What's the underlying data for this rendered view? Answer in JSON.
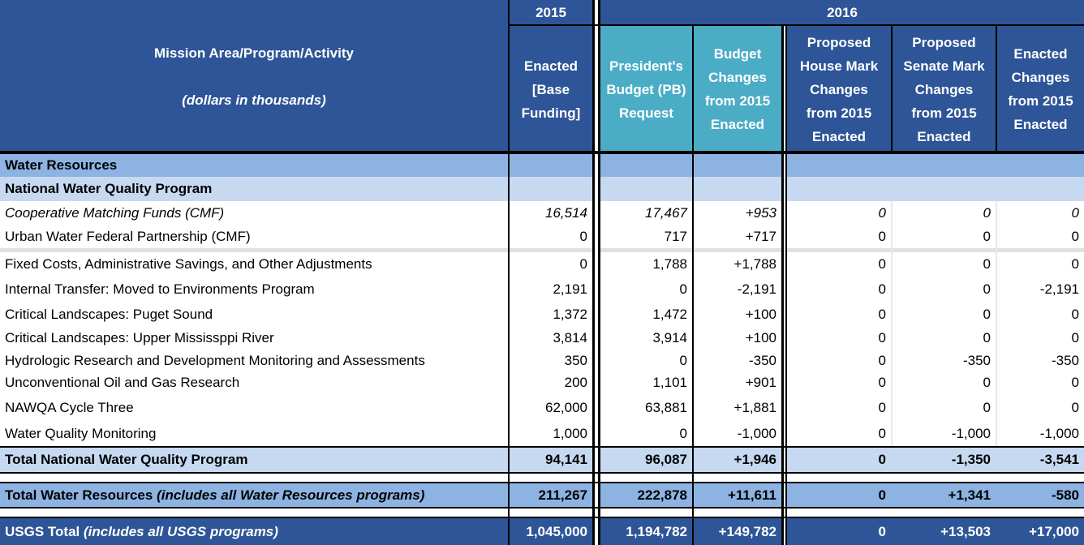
{
  "header": {
    "year_2015": "2015",
    "year_2016": "2016",
    "mission_title": "Mission Area/Program/Activity",
    "mission_subtitle": "(dollars in thousands)",
    "col_enacted_2015": [
      "Enacted",
      "[Base",
      "Funding]"
    ],
    "col_pb_request": [
      "President's",
      "Budget (PB)",
      "Request"
    ],
    "col_budget_changes": [
      "Budget",
      "Changes",
      "from 2015",
      "Enacted"
    ],
    "col_house_mark": [
      "Proposed",
      "House Mark",
      "Changes",
      "from 2015",
      "Enacted"
    ],
    "col_senate_mark": [
      "Proposed",
      "Senate Mark",
      "Changes",
      "from 2015",
      "Enacted"
    ],
    "col_enacted_changes": [
      "Enacted",
      "Changes",
      "from 2015",
      "Enacted"
    ]
  },
  "sections": {
    "water_resources": "Water Resources",
    "nwqp": "National Water Quality Program"
  },
  "rows": [
    {
      "label": "Cooperative Matching Funds (CMF)",
      "v": [
        "16,514",
        "17,467",
        "+953",
        "0",
        "0",
        "0"
      ]
    },
    {
      "label": "Urban Water Federal Partnership (CMF)",
      "v": [
        "0",
        "717",
        "+717",
        "0",
        "0",
        "0"
      ]
    },
    {
      "label": "Fixed Costs, Administrative Savings, and Other Adjustments",
      "v": [
        "0",
        "1,788",
        "+1,788",
        "0",
        "0",
        "0"
      ]
    },
    {
      "label": "Internal Transfer: Moved to Environments Program",
      "v": [
        "2,191",
        "0",
        "-2,191",
        "0",
        "0",
        "-2,191"
      ]
    },
    {
      "label": "Critical Landscapes: Puget Sound",
      "v": [
        "1,372",
        "1,472",
        "+100",
        "0",
        "0",
        "0"
      ]
    },
    {
      "label": "Critical Landscapes: Upper Mississppi River",
      "v": [
        "3,814",
        "3,914",
        "+100",
        "0",
        "0",
        "0"
      ]
    },
    {
      "label": "Hydrologic Research and Development Monitoring and Assessments",
      "v": [
        "350",
        "0",
        "-350",
        "0",
        "-350",
        "-350"
      ]
    },
    {
      "label": "Unconventional Oil and Gas Research",
      "v": [
        "200",
        "1,101",
        "+901",
        "0",
        "0",
        "0"
      ]
    },
    {
      "label": "NAWQA Cycle Three",
      "v": [
        "62,000",
        "63,881",
        "+1,881",
        "0",
        "0",
        "0"
      ]
    },
    {
      "label": "Water Quality Monitoring",
      "v": [
        "1,000",
        "0",
        "-1,000",
        "0",
        "-1,000",
        "-1,000"
      ]
    }
  ],
  "totals": {
    "nwqp": {
      "label": "Total National Water Quality Program",
      "v": [
        "94,141",
        "96,087",
        "+1,946",
        "0",
        "-1,350",
        "-3,541"
      ]
    },
    "water_resources": {
      "label": "Total Water Resources",
      "note": "(includes all Water Resources programs)",
      "v": [
        "211,267",
        "222,878",
        "+11,611",
        "0",
        "+1,341",
        "-580"
      ]
    },
    "usgs": {
      "label": "USGS Total",
      "note": "(includes all USGS programs)",
      "v": [
        "1,045,000",
        "1,194,782",
        "+149,782",
        "0",
        "+13,503",
        "+17,000"
      ]
    }
  },
  "colors": {
    "header_blue": "#2e5597",
    "header_teal": "#4bacc6",
    "section_blue": "#8db3e2",
    "subsection_blue": "#c6d9f1",
    "usgs_total_blue": "#2e5597"
  }
}
